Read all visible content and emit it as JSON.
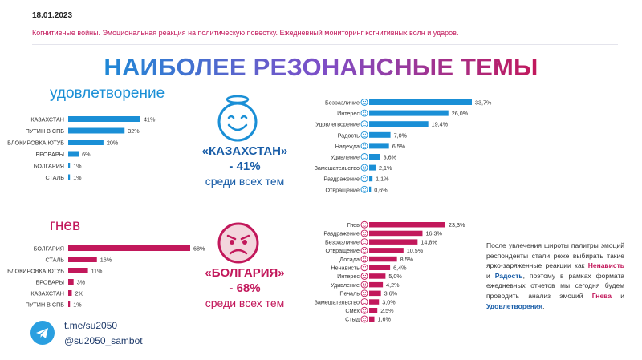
{
  "header": {
    "date": "18.01.2023",
    "subtitle": "Когнитивные войны. Эмоциональная реакция на политическую повестку. Ежедневный мониторинг когнитивных волн и ударов.",
    "headline": "НАИБОЛЕЕ РЕЗОНАНСНЫЕ ТЕМЫ"
  },
  "colors": {
    "blue": "#1a8fd6",
    "magenta": "#c2185b",
    "dark_blue": "#1a5ea8"
  },
  "chart_data": [
    {
      "type": "bar",
      "orientation": "horizontal",
      "title": "удовлетворение",
      "categories": [
        "КАЗАХСТАН",
        "ПУТИН В СПБ",
        "БЛОКИРОВКА ЮТУБ",
        "БРОВАРЫ",
        "БОЛГАРИЯ",
        "СТАЛЬ"
      ],
      "values": [
        41,
        32,
        20,
        6,
        1,
        1
      ],
      "value_labels": [
        "41%",
        "32%",
        "20%",
        "6%",
        "1%",
        "1%"
      ],
      "xlim": [
        0,
        41
      ],
      "color": "#1a8fd6"
    },
    {
      "type": "bar",
      "orientation": "horizontal",
      "categories": [
        "Безразличие",
        "Интерес",
        "Удовлетворение",
        "Радость",
        "Надежда",
        "Удивление",
        "Замешательство",
        "Раздражение",
        "Отвращение"
      ],
      "icons": [
        "neutral-face-icon",
        "curious-face-icon",
        "smiling-face-icon",
        "happy-face-icon",
        "hopeful-face-icon",
        "surprised-face-icon",
        "confused-face-icon",
        "annoyed-face-icon",
        "disgusted-face-icon"
      ],
      "values": [
        33.7,
        26.0,
        19.4,
        7.0,
        6.5,
        3.6,
        2.1,
        1.1,
        0.6
      ],
      "value_labels": [
        "33,7%",
        "26,0%",
        "19,4%",
        "7,0%",
        "6,5%",
        "3,6%",
        "2,1%",
        "1,1%",
        "0,6%"
      ],
      "xlim": [
        0,
        33.7
      ],
      "color": "#1a8fd6"
    },
    {
      "type": "bar",
      "orientation": "horizontal",
      "title": "гнев",
      "categories": [
        "БОЛГАРИЯ",
        "СТАЛЬ",
        "БЛОКИРОВКА ЮТУБ",
        "БРОВАРЫ",
        "КАЗАХСТАН",
        "ПУТИН В СПБ"
      ],
      "values": [
        68,
        16,
        11,
        3,
        2,
        1
      ],
      "value_labels": [
        "68%",
        "16%",
        "11%",
        "3%",
        "2%",
        "1%"
      ],
      "xlim": [
        0,
        68
      ],
      "color": "#c2185b"
    },
    {
      "type": "bar",
      "orientation": "horizontal",
      "categories": [
        "Гнев",
        "Раздражение",
        "Безразличие",
        "Отвращение",
        "Досада",
        "Ненависть",
        "Интерес",
        "Удивление",
        "Печаль",
        "Замешательство",
        "Смех",
        "Стыд"
      ],
      "icons": [
        "angry-face-icon",
        "annoyed-face-icon",
        "neutral-face-icon",
        "disgusted-face-icon",
        "frustrated-face-icon",
        "hateful-face-icon",
        "curious-face-icon",
        "surprised-face-icon",
        "sad-face-icon",
        "confused-face-icon",
        "laughing-face-icon",
        "ashamed-face-icon"
      ],
      "values": [
        23.3,
        16.3,
        14.8,
        10.5,
        8.5,
        6.4,
        5.0,
        4.2,
        3.6,
        3.0,
        2.5,
        1.6
      ],
      "value_labels": [
        "23,3%",
        "16,3%",
        "14,8%",
        "10,5%",
        "8,5%",
        "6,4%",
        "5,0%",
        "4,2%",
        "3,6%",
        "3,0%",
        "2,5%",
        "1,6%"
      ],
      "xlim": [
        0,
        23.3
      ],
      "color": "#c2185b"
    }
  ],
  "highlights": {
    "satisfaction": {
      "name": "«КАЗАХСТАН»",
      "value": "- 41%",
      "note": "среди всех тем",
      "icon": "smiling-face-icon"
    },
    "anger": {
      "name": "«БОЛГАРИЯ»",
      "value": "- 68%",
      "note": "среди всех тем",
      "icon": "angry-face-icon"
    }
  },
  "note": {
    "text_1": "После увлечения широты палитры эмоций респонденты стали реже выбирать такие ярко-заряженные реакции как ",
    "hate": "Ненависть",
    "and_1": " и ",
    "joy": "Радость",
    "text_2": ", поэтому в рамках формата ежедневных отчетов мы сегодня будем проводить анализ эмоций ",
    "anger": "Гнева",
    "and_2": " и ",
    "satisfaction": "Удовлетворения",
    "end": "."
  },
  "footer": {
    "telegram_link": "t.me/su2050",
    "telegram_handle": "@su2050_sambot",
    "icon": "telegram-icon"
  }
}
